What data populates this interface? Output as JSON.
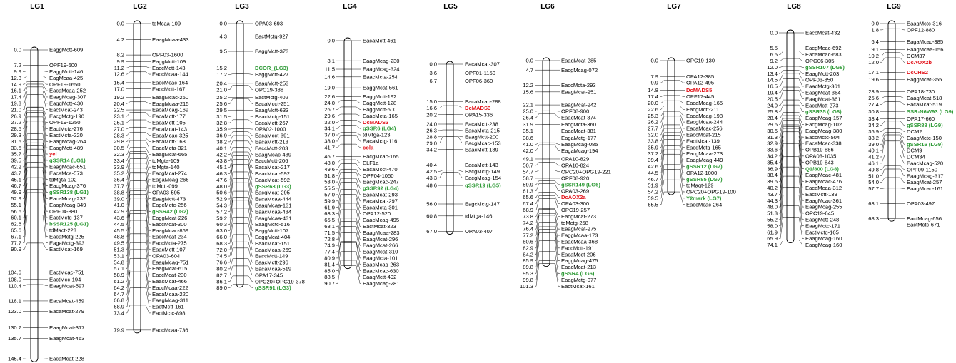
{
  "colors": {
    "text": "#000000",
    "ssr_marker": "#2e9a36",
    "gene_marker": "#e3161d"
  },
  "linkage_groups": [
    {
      "name": "LG1",
      "markers": [
        [
          "0.0",
          "EaggMctt-609"
        ],
        [
          "7.2",
          "OPF19-600"
        ],
        [
          "9.9",
          "EaggMctt-146"
        ],
        [
          "12.3",
          "EagMcaa-425"
        ],
        [
          "14.9",
          "OPF19-1650"
        ],
        [
          "16.1",
          "EacaMcaa-252"
        ],
        [
          "17.4",
          "EaagMcag-307"
        ],
        [
          "19.3",
          "EaggMctt-430"
        ],
        [
          "21.0",
          "EactMcat-243"
        ],
        [
          "26.9",
          "EacgMctg-190"
        ],
        [
          "27.2",
          "OPF19-1250"
        ],
        [
          "28.5",
          "EactMcta-276"
        ],
        [
          "29.3",
          "EactMcta-220"
        ],
        [
          "31.5",
          "EaagMcag-264"
        ],
        [
          "33.5",
          "EaagMctt-489"
        ],
        [
          "35.7",
          "yel"
        ],
        [
          "39.5",
          "gSSR14 (LG1)"
        ],
        [
          "42.2",
          "EaagMcac-651"
        ],
        [
          "43.7",
          "EacaMca-573"
        ],
        [
          "45.1",
          "tdMgta-102"
        ],
        [
          "46.7",
          "EacgMcag-376"
        ],
        [
          "49.9",
          "gSSR138 (LG1)"
        ],
        [
          "52.9",
          "EacaMcag-232"
        ],
        [
          "55.1",
          "EaagMcag-349"
        ],
        [
          "56.6",
          "OPF04-880"
        ],
        [
          "60.1",
          "EactMctg-137"
        ],
        [
          "62.6",
          "bSSR125 (LG1)"
        ],
        [
          "65.6",
          "tdMact-223"
        ],
        [
          "67.1",
          "EacaMctg-225"
        ],
        [
          "77.7",
          "EagaMctg-393"
        ],
        [
          "90.9",
          "EactMcat-169"
        ],
        [
          "104.6",
          "EactMcac-751"
        ],
        [
          "108.0",
          "EactMcc-194"
        ],
        [
          "110.4",
          "EaagMcat-597"
        ],
        [
          "118.1",
          "EacaMcat-459"
        ],
        [
          "123.0",
          "EacaMcat-279"
        ],
        [
          "130.7",
          "EaagMcat-317"
        ],
        [
          "135.7",
          "EaagMcat-463"
        ],
        [
          "145.4",
          "EacaMcat-228"
        ]
      ]
    },
    {
      "name": "LG2",
      "markers": [
        [
          "0.0",
          "tdMcaa-109"
        ],
        [
          "4.2",
          "EaagMcaa-433"
        ],
        [
          "8.2",
          "OPF03-1600"
        ],
        [
          "9.9",
          "EaggMctt-109"
        ],
        [
          "11.2",
          "EaccMctt-143"
        ],
        [
          "12.6",
          "EaccMcaa-144"
        ],
        [
          "15.4",
          "EaccMcac-164"
        ],
        [
          "17.0",
          "EaccMctt-167"
        ],
        [
          "19.2",
          "EaagMcac-260"
        ],
        [
          "20.4",
          "EaagMcaa-215"
        ],
        [
          "22.5",
          "EacaMcag-169"
        ],
        [
          "23.1",
          "EacaMctt-177"
        ],
        [
          "25.1",
          "EacaMctt-105"
        ],
        [
          "27.0",
          "EacaMcat-143"
        ],
        [
          "28.3",
          "EacaMcac-325"
        ],
        [
          "29.8",
          "EacaMctt-163"
        ],
        [
          "30.5",
          "EaacMcta-321"
        ],
        [
          "32.3",
          "EaagMcat-665"
        ],
        [
          "33.4",
          "tdMgta-109"
        ],
        [
          "33.9",
          "tdMgta-140"
        ],
        [
          "35.2",
          "EacgMcat-274"
        ],
        [
          "36.4",
          "EagaMcag-266"
        ],
        [
          "37.7",
          "tdMctt-099"
        ],
        [
          "38.8",
          "OPA03-595"
        ],
        [
          "39.0",
          "EaagMctt-473"
        ],
        [
          "41.0",
          "EagcMctc-256"
        ],
        [
          "42.9",
          "gSSR42 (LG2)"
        ],
        [
          "43.6",
          "EaggMcat-226"
        ],
        [
          "44.5",
          "EaccMcat-300"
        ],
        [
          "45.5",
          "EaagMcac-869"
        ],
        [
          "48.8",
          "EaccMcat-234"
        ],
        [
          "49.5",
          "EaccMcta-275"
        ],
        [
          "51.3",
          "EaacMctt-107"
        ],
        [
          "53.1",
          "OPA03-604"
        ],
        [
          "54.8",
          "EaagMcag-751"
        ],
        [
          "57.1",
          "EaagMcat-615"
        ],
        [
          "58.9",
          "EaccMcat-230"
        ],
        [
          "61.2",
          "EaacMcat-466"
        ],
        [
          "64.2",
          "EaccMcaa-222"
        ],
        [
          "64.7",
          "EacaMcaa-220"
        ],
        [
          "66.8",
          "EaagMcag-311"
        ],
        [
          "68.9",
          "EactMctt-161"
        ],
        [
          "73.4",
          "EactMctc-898"
        ],
        [
          "79.9",
          "EaccMcaa-736"
        ]
      ]
    },
    {
      "name": "LG3",
      "markers": [
        [
          "0.0",
          "OPA03-693"
        ],
        [
          "4.3",
          "EactMctg-927"
        ],
        [
          "9.5",
          "EaggMctt-373"
        ],
        [
          "15.2",
          "DCOR_(LG3)"
        ],
        [
          "17.2",
          "EaggMctt-427"
        ],
        [
          "20.4",
          "EaagMctt-253"
        ],
        [
          "21.0",
          "OPC19-388"
        ],
        [
          "25.2",
          "EactMctg-402"
        ],
        [
          "25.6",
          "EacaMcct-251"
        ],
        [
          "29.5",
          "EaagMctt-633"
        ],
        [
          "31.5",
          "EaacMctg-151"
        ],
        [
          "32.8",
          "EacaMctt-267"
        ],
        [
          "35.9",
          "OPA02-1000"
        ],
        [
          "36.9",
          "EacaMcct-391"
        ],
        [
          "38.2",
          "EacaMctt-213"
        ],
        [
          "40.1",
          "EaccMctt-203"
        ],
        [
          "42.2",
          "EaagMcac-439"
        ],
        [
          "43.8",
          "EaccMctt-206"
        ],
        [
          "45.1",
          "EacaMcat-217"
        ],
        [
          "46.3",
          "EaacMcat-592"
        ],
        [
          "47.6",
          "EaacMcat-592"
        ],
        [
          "48.0",
          "gSSR63 (LG3)"
        ],
        [
          "50.6",
          "EacgMcat-295"
        ],
        [
          "52.9",
          "EacaMcaa-444"
        ],
        [
          "54.3",
          "EaagMcaa-131"
        ],
        [
          "57.2",
          "EaacMcaa-434"
        ],
        [
          "59.2",
          "EaagMcaa-431"
        ],
        [
          "60.3",
          "EaagMctc-516"
        ],
        [
          "63.0",
          "EaggMctt-107"
        ],
        [
          "66.0",
          "EaggMcat-404"
        ],
        [
          "68.3",
          "EaacMcat-151"
        ],
        [
          "72.0",
          "EaacMcaa-269"
        ],
        [
          "74.5",
          "EaccMctt-149"
        ],
        [
          "76.6",
          "EaacMctt-296"
        ],
        [
          "80.2",
          "EacaMcaa-519"
        ],
        [
          "82.7",
          "OPA17-345"
        ],
        [
          "86.1",
          "OPC20+OPG19-378"
        ],
        [
          "89.0",
          "gSSR91 (LG3)"
        ]
      ]
    },
    {
      "name": "LG4",
      "markers": [
        [
          "0.0",
          "EacaMctt-461"
        ],
        [
          "8.1",
          "EaagMcag-230"
        ],
        [
          "11.5",
          "EaagMcag-324"
        ],
        [
          "14.6",
          "EaacMcta-254"
        ],
        [
          "19.0",
          "EaggMcat-561"
        ],
        [
          "22.6",
          "EaggMctt-192"
        ],
        [
          "24.0",
          "EaggMctt-128"
        ],
        [
          "26.7",
          "EaggMctt-500"
        ],
        [
          "29.6",
          "EaacMcta-165"
        ],
        [
          "32.0",
          "DcMADS3"
        ],
        [
          "34.1",
          "gSSR6 (LG4)"
        ],
        [
          "37.0",
          "tdMtga-123"
        ],
        [
          "38.0",
          "EacaMctg-116"
        ],
        [
          "41.7",
          "cola"
        ],
        [
          "46.7",
          "EacgMcac-165"
        ],
        [
          "48.0",
          "ELF1a"
        ],
        [
          "49.6",
          "EacaMcct-470"
        ],
        [
          "51.8",
          "OPF04-1050"
        ],
        [
          "53.0",
          "EacgMcac-247"
        ],
        [
          "55.5",
          "gSSR92 (LG4)"
        ],
        [
          "57.0",
          "EacaMcat-293"
        ],
        [
          "59.9",
          "EacaMcat-297"
        ],
        [
          "61.9",
          "EacaMcta-301"
        ],
        [
          "63.3",
          "OPA12-520"
        ],
        [
          "65.5",
          "EaacMcag-495"
        ],
        [
          "68.1",
          "EactMcat-323"
        ],
        [
          "71.5",
          "EaagMcaa-283"
        ],
        [
          "72.8",
          "EaagMcat-296"
        ],
        [
          "74.9",
          "EaagMcat-266"
        ],
        [
          "77.4",
          "EaagMcat-310"
        ],
        [
          "80.9",
          "EaagMcta-101"
        ],
        [
          "81.4",
          "EaacMcag-263"
        ],
        [
          "85.0",
          "EaacMcac-630"
        ],
        [
          "88.5",
          "EaagMctt-492"
        ],
        [
          "90.7",
          "EaagMcag-281"
        ]
      ]
    },
    {
      "name": "LG5",
      "markers": [
        [
          "0.0",
          "EacaMcat-307"
        ],
        [
          "3.6",
          "OPF01-1150"
        ],
        [
          "6.7",
          "OPF06-360"
        ],
        [
          "15.0",
          "EacaMcac-288"
        ],
        [
          "16.6",
          "DcMADS3"
        ],
        [
          "20.2",
          "OPA15-336"
        ],
        [
          "24.0",
          "EacaMctt-238"
        ],
        [
          "26.3",
          "EacaMcta-215"
        ],
        [
          "28.8",
          "EaagMctt-200"
        ],
        [
          "29.0",
          "EacgMcac-153"
        ],
        [
          "34.2",
          "EaacMctt-189"
        ],
        [
          "40.4",
          "EacaMctt-143"
        ],
        [
          "42.5",
          "EacgMctg-149"
        ],
        [
          "43.3",
          "EacgMcag-154"
        ],
        [
          "48.6",
          "gSSR19 (LG5)"
        ],
        [
          "56.0",
          "EagcMctg-147"
        ],
        [
          "60.8",
          "tdMtga-146"
        ],
        [
          "67.0",
          "OPA03-407"
        ]
      ]
    },
    {
      "name": "LG6",
      "markers": [
        [
          "0.0",
          "EaagMcat-285"
        ],
        [
          "4.7",
          "EacgMcag-072"
        ],
        [
          "12.2",
          "EaccMcta-293"
        ],
        [
          "15.6",
          "EaagMcat-251"
        ],
        [
          "22.1",
          "EaagMcat-242"
        ],
        [
          "25.0",
          "OPF08-900"
        ],
        [
          "26.4",
          "EaacMcat-374"
        ],
        [
          "31.9",
          "EacgMcta-360"
        ],
        [
          "35.1",
          "EaacMcat-381"
        ],
        [
          "38.6",
          "EagaMctg-177"
        ],
        [
          "41.0",
          "EaagMcag-085"
        ],
        [
          "42.0",
          "EagaMcag-194"
        ],
        [
          "49.1",
          "OPA10-829"
        ],
        [
          "50.7",
          "OPA10-824"
        ],
        [
          "54.7",
          "OPC20+OPG19-221"
        ],
        [
          "58.7",
          "OPF08-920"
        ],
        [
          "59.9",
          "gSSR149 (LG6)"
        ],
        [
          "61.3",
          "OPA03-269"
        ],
        [
          "65.6",
          "DcAOX2a"
        ],
        [
          "67.4",
          "OPA03-300"
        ],
        [
          "68.9",
          "OPC19-257"
        ],
        [
          "73.8",
          "EacgMcat-273"
        ],
        [
          "74.2",
          "tdMctg-258"
        ],
        [
          "76.4",
          "EaagMcat-275"
        ],
        [
          "77.2",
          "EaggMcaa-173"
        ],
        [
          "80.6",
          "EaacMcaa-368"
        ],
        [
          "82.9",
          "EaccMctt-191"
        ],
        [
          "84.2",
          "EacaMcct-206"
        ],
        [
          "85.9",
          "EaggMcag-475"
        ],
        [
          "89.8",
          "EaacMcat-213"
        ],
        [
          "95.3",
          "gSSR4 (LG6)"
        ],
        [
          "99.8",
          "EaagMctg-077"
        ],
        [
          "101.3",
          "EactMcat-161"
        ]
      ]
    },
    {
      "name": "LG7",
      "markers": [
        [
          "0.0",
          "OPC19-130"
        ],
        [
          "7.9",
          "OPA12-385"
        ],
        [
          "9.9",
          "OPA12-495"
        ],
        [
          "14.8",
          "DcMADS5"
        ],
        [
          "17.4",
          "OPF17-445"
        ],
        [
          "20.0",
          "EacaMcag-165"
        ],
        [
          "22.6",
          "EacgMctt-211"
        ],
        [
          "25.3",
          "EacaMcag-198"
        ],
        [
          "26.2",
          "EacgMcaa-244"
        ],
        [
          "27.7",
          "EacaMcac-256"
        ],
        [
          "32.0",
          "EaccMcat-215"
        ],
        [
          "33.8",
          "EactMcat-139"
        ],
        [
          "35.9",
          "EacgMctg-165"
        ],
        [
          "37.2",
          "EacgMcaa-273"
        ],
        [
          "39.4",
          "EaagMcag-449"
        ],
        [
          "42.6",
          "gSSR12 (LG7)"
        ],
        [
          "44.5",
          "OPA12-1000"
        ],
        [
          "46.7",
          "gSSR85 (LG7)"
        ],
        [
          "51.9",
          "tdMagt-129"
        ],
        [
          "54.2",
          "OPC20+OPG19-100"
        ],
        [
          "59.5",
          "Y2mark (LG7)"
        ],
        [
          "65.5",
          "EaccMcac-264"
        ]
      ]
    },
    {
      "name": "LG8",
      "markers": [
        [
          "0.0",
          "EaccMcat-432"
        ],
        [
          "5.5",
          "EacgMcac-692"
        ],
        [
          "6.5",
          "EacaMcac-683"
        ],
        [
          "9.2",
          "OPG06-305"
        ],
        [
          "12.0",
          "gSSR107 (LG8)"
        ],
        [
          "13.4",
          "EaagMctt-203"
        ],
        [
          "14.5",
          "OPF03-850"
        ],
        [
          "16.5",
          "EaacMctg-361"
        ],
        [
          "19.4",
          "EaagMcat-364"
        ],
        [
          "20.5",
          "EaagMcat-361"
        ],
        [
          "24.0",
          "EaccMctt-273"
        ],
        [
          "25.8",
          "gSSR35 (LG8)"
        ],
        [
          "28.4",
          "EaagMcag-157"
        ],
        [
          "29.6",
          "EacgMcag-102"
        ],
        [
          "30.6",
          "EaagMcag-380"
        ],
        [
          "31.3",
          "EaccMctc-504"
        ],
        [
          "32.9",
          "EacaMcac-338"
        ],
        [
          "33.6",
          "OPB19-886"
        ],
        [
          "34.2",
          "OPA03-1035"
        ],
        [
          "35.4",
          "OPB19-843"
        ],
        [
          "36.9",
          "Q1/800 (LG8)"
        ],
        [
          "38.4",
          "EaagMcac-481"
        ],
        [
          "39.6",
          "EaagMcac-476"
        ],
        [
          "40.2",
          "EacaMcaa-312"
        ],
        [
          "43.7",
          "EactMctt-139"
        ],
        [
          "44.3",
          "EaagMcac-361"
        ],
        [
          "48.0",
          "EaagMcag-255"
        ],
        [
          "51.3",
          "OPC19-645"
        ],
        [
          "55.2",
          "EaagMctt-248"
        ],
        [
          "58.0",
          "EaagMctc-171"
        ],
        [
          "61.9",
          "EactMctg-165"
        ],
        [
          "65.9",
          "EaagMcag-160"
        ],
        [
          "74.1",
          "EaagMcag-160"
        ]
      ]
    },
    {
      "name": "LG9",
      "markers": [
        [
          "0.0",
          "EaagMctc-316"
        ],
        [
          "1.8",
          "OPF12-880"
        ],
        [
          "6.4",
          "EagaMcac-385"
        ],
        [
          "9.1",
          "EaagMcaa-156"
        ],
        [
          "10.2",
          "DCM37"
        ],
        [
          "12.0",
          "DcAOX2b"
        ],
        [
          "17.1",
          "DcCHS2"
        ],
        [
          "19.6",
          "EaggMcat-355"
        ],
        [
          "23.9",
          "OPA18-730"
        ],
        [
          "25.6",
          "EaagMcat-518"
        ],
        [
          "27.4",
          "EacaMcat-519"
        ],
        [
          "30.8",
          "SSR-N6W93 (LG9)"
        ],
        [
          "33.4",
          "OPA17-660"
        ],
        [
          "34.2",
          "gSSR88 (LG9)"
        ],
        [
          "36.9",
          "DCM2"
        ],
        [
          "38.2",
          "EaagMctc-150"
        ],
        [
          "39.0",
          "gSSR16 (LG9)"
        ],
        [
          "40.1",
          "DCM9"
        ],
        [
          "41.2",
          "DCM34"
        ],
        [
          "46.1",
          "EaacMcag-520"
        ],
        [
          "49.8",
          "OPF09-1150"
        ],
        [
          "51.0",
          "EaagMcag-317"
        ],
        [
          "54.0",
          "EaagMcat-257"
        ],
        [
          "57.7",
          "EaagMcac-161"
        ],
        [
          "63.1",
          "OPA03-497"
        ],
        [
          "68.3",
          "EactMcag-656"
        ],
        [
          "",
          "EactMctc-671"
        ]
      ]
    }
  ]
}
